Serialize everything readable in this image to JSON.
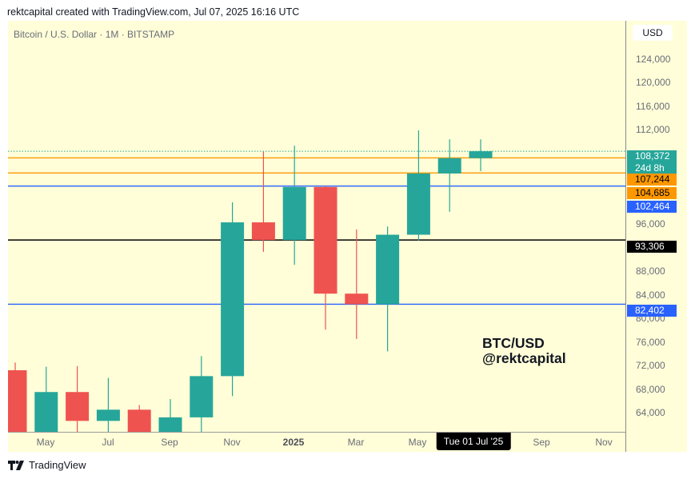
{
  "header": {
    "text": "rektcapital created with TradingView.com, Jul 07, 2025 16:16 UTC"
  },
  "symbol": {
    "title": "Bitcoin / U.S. Dollar · 1M · BITSTAMP"
  },
  "axis": {
    "currency_button": "USD",
    "ticks": [
      "124,000",
      "120,000",
      "116,000",
      "112,000",
      "96,000",
      "92,000",
      "88,000",
      "84,000",
      "80,000",
      "76,000",
      "72,000",
      "68,000",
      "64,000"
    ],
    "price_labels": [
      {
        "value": "108,372",
        "sub": "24d 8h",
        "bg": "#26a69a",
        "fg": "#ffffff"
      },
      {
        "value": "107,244",
        "bg": "#ff9800",
        "fg": "#000000"
      },
      {
        "value": "104,685",
        "bg": "#ff9800",
        "fg": "#000000"
      },
      {
        "value": "102,464",
        "bg": "#2962ff",
        "fg": "#ffffff"
      },
      {
        "value": "93,306",
        "bg": "#000000",
        "fg": "#ffffff"
      },
      {
        "value": "82,402",
        "bg": "#2962ff",
        "fg": "#ffffff"
      }
    ],
    "x_ticks": [
      "May",
      "Jul",
      "Sep",
      "Nov",
      "2025",
      "Mar",
      "May",
      "Sep",
      "Nov"
    ],
    "x_cursor": "Tue 01 Jul '25"
  },
  "watermark": {
    "line1": "BTC/USD",
    "line2": "@rektcapital"
  },
  "footer": {
    "brand": "TradingView"
  },
  "colors": {
    "up": "#26a69a",
    "down": "#ef5350",
    "background": "#fffed8",
    "orange_line": "#ff9800",
    "blue_line": "#2962ff",
    "black_line": "#000000"
  },
  "chart_data": {
    "type": "candlestick",
    "title": "Bitcoin / U.S. Dollar · 1M · BITSTAMP",
    "xlabel": "",
    "ylabel": "USD",
    "ylim": [
      60700,
      130500
    ],
    "categories": [
      "Apr 2024",
      "May 2024",
      "Jun 2024",
      "Jul 2024",
      "Aug 2024",
      "Sep 2024",
      "Oct 2024",
      "Nov 2024",
      "Dec 2024",
      "Jan 2025",
      "Feb 2025",
      "Mar 2025",
      "Apr 2025",
      "May 2025",
      "Jun 2025",
      "Jul 2025"
    ],
    "series": [
      {
        "name": "open",
        "values": [
          71200,
          60700,
          67500,
          62600,
          64500,
          58900,
          63200,
          70200,
          96300,
          93300,
          102300,
          84200,
          82400,
          94200,
          104600,
          107200
        ]
      },
      {
        "name": "high",
        "values": [
          72500,
          71800,
          71900,
          69900,
          65300,
          66300,
          73600,
          99700,
          108300,
          109300,
          102500,
          95100,
          95600,
          111900,
          110400,
          110400
        ]
      },
      {
        "name": "low",
        "values": [
          59000,
          56500,
          58400,
          53500,
          49000,
          52500,
          58900,
          66800,
          91300,
          89100,
          78100,
          76500,
          74400,
          93200,
          98100,
          105000
        ]
      },
      {
        "name": "close",
        "values": [
          60700,
          67500,
          62600,
          64500,
          58900,
          63200,
          70200,
          96300,
          93300,
          102300,
          84200,
          82400,
          94200,
          104600,
          107200,
          108372
        ]
      }
    ],
    "horizontal_levels": [
      {
        "price": 108372,
        "color": "#26a69a",
        "style": "dotted",
        "label": "last price"
      },
      {
        "price": 107244,
        "color": "#ff9800",
        "style": "solid"
      },
      {
        "price": 104685,
        "color": "#ff9800",
        "style": "solid"
      },
      {
        "price": 102464,
        "color": "#2962ff",
        "style": "solid"
      },
      {
        "price": 93306,
        "color": "#000000",
        "style": "solid"
      },
      {
        "price": 82402,
        "color": "#2962ff",
        "style": "solid"
      }
    ],
    "y_ticks": [
      64000,
      68000,
      72000,
      76000,
      80000,
      84000,
      88000,
      92000,
      96000,
      112000,
      116000,
      120000,
      124000
    ],
    "annotations": [
      "BTC/USD",
      "@rektcapital"
    ],
    "grid": false,
    "legend": "none"
  }
}
